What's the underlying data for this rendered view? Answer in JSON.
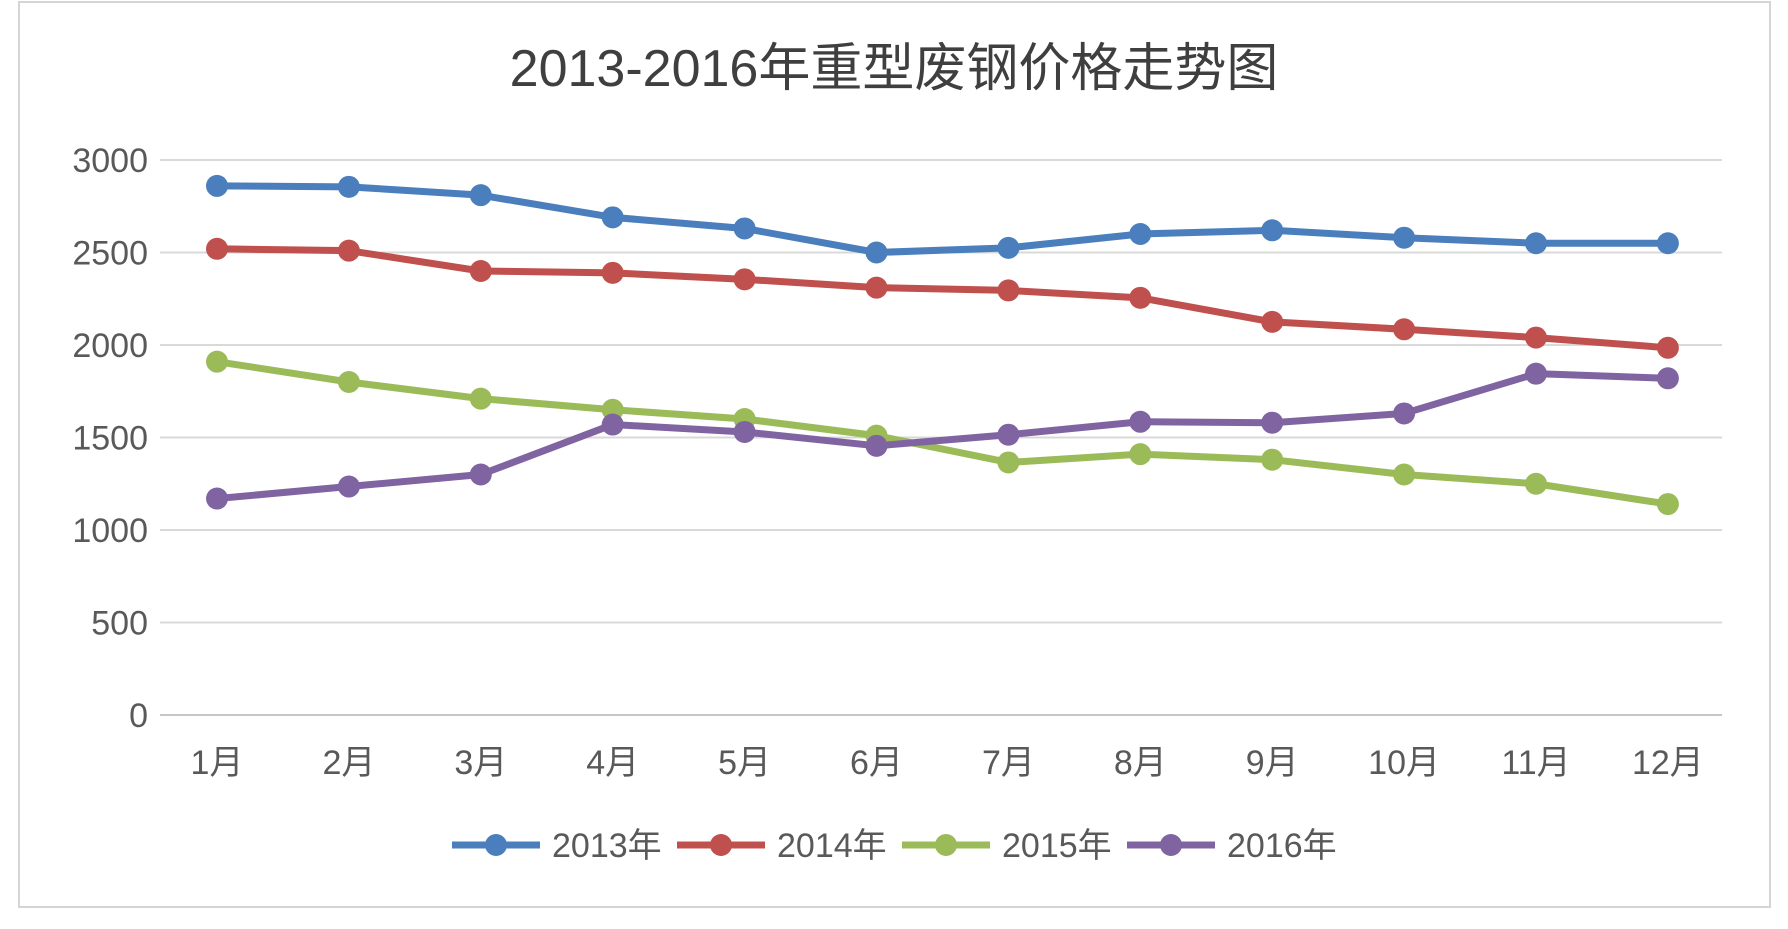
{
  "chart_data": {
    "type": "line",
    "title": "2013-2016年重型废钢价格走势图",
    "xlabel": "",
    "ylabel": "",
    "categories": [
      "1月",
      "2月",
      "3月",
      "4月",
      "5月",
      "6月",
      "7月",
      "8月",
      "9月",
      "10月",
      "11月",
      "12月"
    ],
    "series": [
      {
        "name": "2013年",
        "color": "#4A7EBD",
        "values": [
          2860,
          2855,
          2810,
          2690,
          2630,
          2500,
          2525,
          2600,
          2620,
          2580,
          2550,
          2550
        ]
      },
      {
        "name": "2014年",
        "color": "#C0504D",
        "values": [
          2520,
          2510,
          2400,
          2390,
          2355,
          2310,
          2295,
          2255,
          2125,
          2085,
          2040,
          1985
        ]
      },
      {
        "name": "2015年",
        "color": "#9BBB59",
        "values": [
          1910,
          1800,
          1710,
          1650,
          1600,
          1510,
          1365,
          1410,
          1380,
          1300,
          1250,
          1140
        ]
      },
      {
        "name": "2016年",
        "color": "#8064A2",
        "values": [
          1170,
          1235,
          1300,
          1570,
          1530,
          1455,
          1515,
          1585,
          1580,
          1630,
          1845,
          1820
        ]
      }
    ],
    "ylim": [
      0,
      3000
    ],
    "y_ticks": [
      0,
      500,
      1000,
      1500,
      2000,
      2500,
      3000
    ],
    "grid": "horizontal",
    "legend_position": "bottom",
    "marker": "circle"
  },
  "style": {
    "background": "#FFFFFF",
    "grid_color": "#D9D9D9",
    "axis_line_color": "#C6C6C6",
    "axis_text_color": "#595959",
    "title_color": "#3F3F3F",
    "border_color": "#D5D5D5"
  }
}
